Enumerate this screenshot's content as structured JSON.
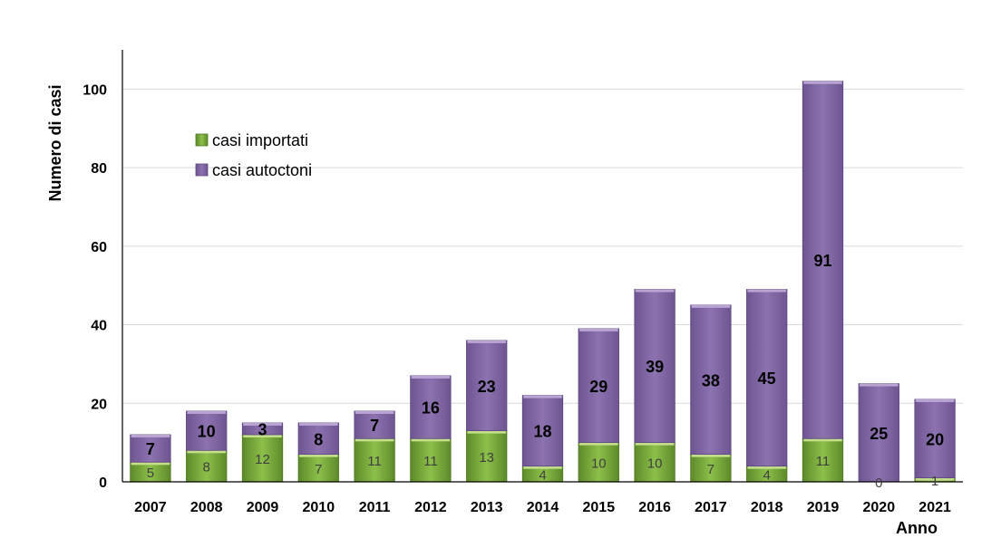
{
  "chart_data": {
    "type": "bar",
    "stacked": true,
    "categories": [
      "2007",
      "2008",
      "2009",
      "2010",
      "2011",
      "2012",
      "2013",
      "2014",
      "2015",
      "2016",
      "2017",
      "2018",
      "2019",
      "2020",
      "2021"
    ],
    "series": [
      {
        "name": "casi importati",
        "values": [
          5,
          8,
          12,
          7,
          11,
          11,
          13,
          4,
          10,
          10,
          7,
          4,
          11,
          0,
          1
        ],
        "color": "#7aa43c"
      },
      {
        "name": "casi autoctoni",
        "values": [
          7,
          10,
          3,
          8,
          7,
          16,
          23,
          18,
          29,
          39,
          38,
          45,
          91,
          25,
          20
        ],
        "color": "#8064a2"
      }
    ],
    "ylabel": "Numero di casi",
    "xlabel": "Anno",
    "ylim": [
      0,
      110
    ],
    "yticks": [
      0,
      20,
      40,
      60,
      80,
      100
    ],
    "grid": true,
    "legend_position": "top-left"
  }
}
